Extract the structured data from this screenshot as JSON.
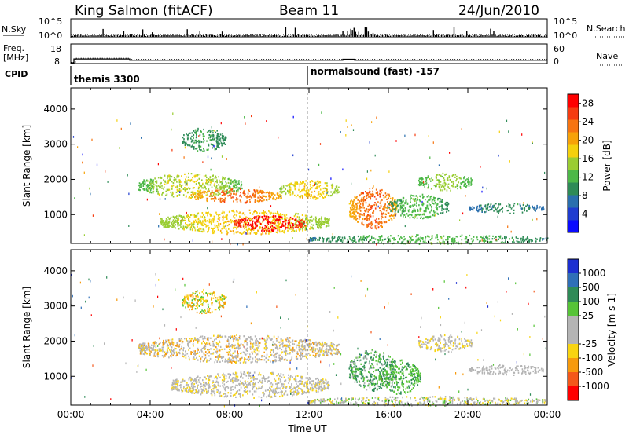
{
  "header": {
    "station": "King Salmon (fitACF)",
    "beam": "Beam 11",
    "date": "24/Jun/2010"
  },
  "panels": {
    "nsky_label": "N.Sky",
    "nsearch_label": "N.Search",
    "nsky_ticks": [
      "10^5",
      "10^0"
    ],
    "nsearch_ticks": [
      "10^5",
      "10^0"
    ],
    "freq_label_1": "Freq.",
    "freq_label_2": "[MHz]",
    "freq_ticks": [
      "18",
      "8"
    ],
    "nave_label": "Nave",
    "nave_ticks": [
      "60",
      "0"
    ],
    "cpid_label": "CPID",
    "cpid_modes": [
      {
        "name": "themis 3300",
        "start_hour": 0
      },
      {
        "name": "normalsound (fast) -157",
        "start_hour": 12
      }
    ]
  },
  "chart_data": [
    {
      "type": "heatmap",
      "variable": "Power",
      "xlabel": "Time UT",
      "ylabel": "Slant Range [km]",
      "xlim": [
        0,
        24
      ],
      "ylim": [
        180,
        4600
      ],
      "x_ticks": [
        "00:00",
        "04:00",
        "08:00",
        "12:00",
        "16:00",
        "20:00",
        "00:00"
      ],
      "y_ticks": [
        1000,
        2000,
        3000,
        4000
      ],
      "colorbar": {
        "label": "Power [dB]",
        "ticks": [
          4,
          8,
          12,
          16,
          20,
          24,
          28
        ],
        "range": [
          0,
          30
        ],
        "colors": [
          "#0a0aff",
          "#1f3cd0",
          "#2a6fae",
          "#2e8b57",
          "#4db848",
          "#9acd32",
          "#f4d00c",
          "#f7a208",
          "#f77410",
          "#f63c10",
          "#ff0000"
        ]
      },
      "regions": [
        {
          "t0": 5.6,
          "t1": 7.8,
          "r0": 2800,
          "r1": 3500,
          "v0": 6,
          "v1": 12
        },
        {
          "t0": 3.4,
          "t1": 8.6,
          "r0": 1500,
          "r1": 2200,
          "v0": 8,
          "v1": 18
        },
        {
          "t0": 6.0,
          "t1": 10.6,
          "r0": 1350,
          "r1": 1750,
          "v0": 14,
          "v1": 26
        },
        {
          "t0": 10.5,
          "t1": 13.5,
          "r0": 1450,
          "r1": 2000,
          "v0": 10,
          "v1": 20
        },
        {
          "t0": 4.5,
          "t1": 13.0,
          "r0": 450,
          "r1": 1150,
          "v0": 10,
          "v1": 20
        },
        {
          "t0": 8.2,
          "t1": 11.8,
          "r0": 550,
          "r1": 1000,
          "v0": 24,
          "v1": 30
        },
        {
          "t0": 14.0,
          "t1": 16.4,
          "r0": 600,
          "r1": 1800,
          "v0": 14,
          "v1": 26
        },
        {
          "t0": 16.0,
          "t1": 19.0,
          "r0": 900,
          "r1": 1600,
          "v0": 6,
          "v1": 14
        },
        {
          "t0": 17.5,
          "t1": 20.2,
          "r0": 1700,
          "r1": 2200,
          "v0": 8,
          "v1": 16
        },
        {
          "t0": 20.0,
          "t1": 23.8,
          "r0": 1050,
          "r1": 1350,
          "v0": 4,
          "v1": 10
        },
        {
          "t0": 12.0,
          "t1": 24.0,
          "r0": 180,
          "r1": 450,
          "v0": 4,
          "v1": 14
        }
      ]
    },
    {
      "type": "heatmap",
      "variable": "Velocity",
      "xlabel": "Time UT",
      "ylabel": "Slant Range [km]",
      "xlim": [
        0,
        24
      ],
      "ylim": [
        180,
        4600
      ],
      "x_ticks": [
        "00:00",
        "04:00",
        "08:00",
        "12:00",
        "16:00",
        "20:00",
        "00:00"
      ],
      "y_ticks": [
        1000,
        2000,
        3000,
        4000
      ],
      "colorbar": {
        "label": "Velocity [m s-1]",
        "ticks": [
          "1000",
          "500",
          "100",
          "25",
          "-25",
          "-100",
          "-500",
          "-1000"
        ],
        "colors": [
          "#1c2fd1",
          "#2f6fb8",
          "#2e8b57",
          "#56c437",
          "#b4b4b4",
          "#b4b4b4",
          "#f8d410",
          "#f79a0c",
          "#f4581a",
          "#ff0000"
        ]
      },
      "regions": [
        {
          "t0": 5.6,
          "t1": 7.8,
          "r0": 2800,
          "r1": 3500,
          "classes": [
            6,
            7,
            3
          ]
        },
        {
          "t0": 3.4,
          "t1": 13.5,
          "r0": 1400,
          "r1": 2200,
          "classes": [
            4,
            5,
            6,
            7,
            4
          ]
        },
        {
          "t0": 5.0,
          "t1": 13.0,
          "r0": 400,
          "r1": 1150,
          "classes": [
            4,
            5,
            4,
            6
          ]
        },
        {
          "t0": 14.0,
          "t1": 16.4,
          "r0": 600,
          "r1": 1800,
          "classes": [
            2,
            3,
            2,
            4
          ]
        },
        {
          "t0": 15.5,
          "t1": 17.6,
          "r0": 500,
          "r1": 1500,
          "classes": [
            3,
            3,
            2
          ]
        },
        {
          "t0": 17.5,
          "t1": 20.2,
          "r0": 1700,
          "r1": 2200,
          "classes": [
            4,
            5,
            6
          ]
        },
        {
          "t0": 20.0,
          "t1": 23.8,
          "r0": 1050,
          "r1": 1350,
          "classes": [
            4,
            5
          ]
        },
        {
          "t0": 12.0,
          "t1": 24.0,
          "r0": 180,
          "r1": 450,
          "classes": [
            4,
            5,
            6,
            3
          ]
        }
      ]
    }
  ]
}
